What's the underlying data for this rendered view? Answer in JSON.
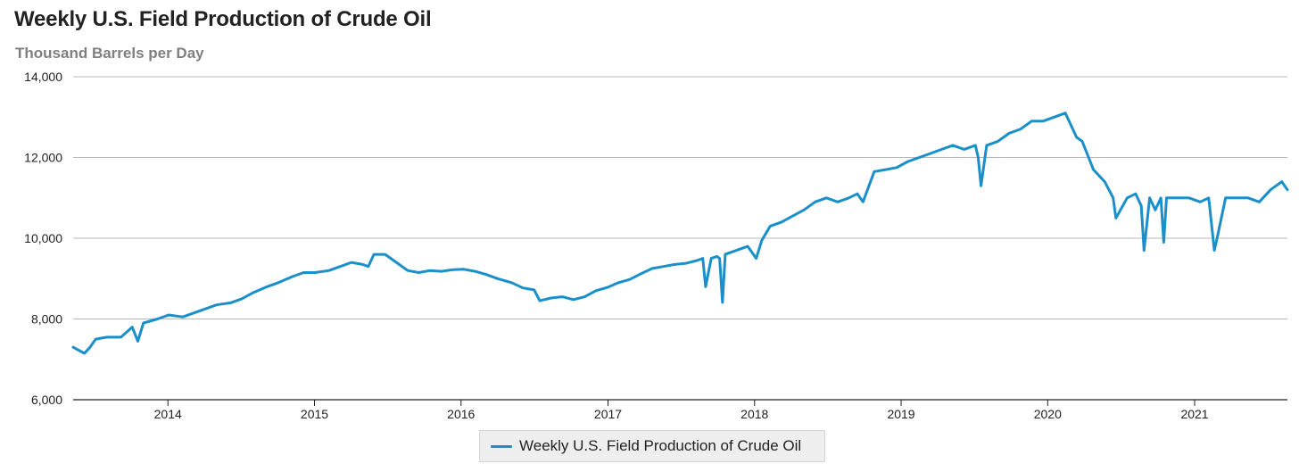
{
  "chart_data": {
    "type": "line",
    "title": "Weekly U.S. Field Production of Crude Oil",
    "subtitle": "Thousand Barrels per Day",
    "xlabel": "",
    "ylabel": "",
    "ylim": [
      6000,
      14000
    ],
    "xlim": [
      "2013-05-10",
      "2021-08-20"
    ],
    "y_ticks": [
      6000,
      8000,
      10000,
      12000,
      14000
    ],
    "y_tick_labels": [
      "6,000",
      "8,000",
      "10,000",
      "12,000",
      "14,000"
    ],
    "x_ticks": [
      "2014-01-01",
      "2015-01-01",
      "2016-01-01",
      "2017-01-01",
      "2018-01-01",
      "2019-01-01",
      "2020-01-01",
      "2021-01-01"
    ],
    "x_tick_labels": [
      "2014",
      "2015",
      "2016",
      "2017",
      "2018",
      "2019",
      "2020",
      "2021"
    ],
    "grid": true,
    "legend": "bottom-center",
    "series": [
      {
        "name": "Weekly U.S. Field Production of Crude Oil",
        "color": "#1a8fc9",
        "x": [
          "2013-05-10",
          "2013-06-07",
          "2013-06-21",
          "2013-07-05",
          "2013-08-02",
          "2013-09-06",
          "2013-10-04",
          "2013-10-18",
          "2013-11-01",
          "2013-12-06",
          "2014-01-03",
          "2014-02-07",
          "2014-03-07",
          "2014-04-04",
          "2014-05-02",
          "2014-06-06",
          "2014-07-04",
          "2014-08-01",
          "2014-09-05",
          "2014-10-03",
          "2014-11-07",
          "2014-12-05",
          "2015-01-02",
          "2015-02-06",
          "2015-03-06",
          "2015-04-03",
          "2015-05-01",
          "2015-05-15",
          "2015-05-29",
          "2015-06-26",
          "2015-07-24",
          "2015-08-21",
          "2015-09-18",
          "2015-10-16",
          "2015-11-13",
          "2015-12-11",
          "2016-01-08",
          "2016-02-05",
          "2016-03-04",
          "2016-04-01",
          "2016-05-06",
          "2016-06-03",
          "2016-07-01",
          "2016-07-15",
          "2016-08-12",
          "2016-09-09",
          "2016-10-07",
          "2016-11-04",
          "2016-12-02",
          "2016-12-30",
          "2017-01-27",
          "2017-02-24",
          "2017-03-24",
          "2017-04-21",
          "2017-05-19",
          "2017-06-16",
          "2017-07-14",
          "2017-08-11",
          "2017-08-25",
          "2017-09-01",
          "2017-09-15",
          "2017-09-29",
          "2017-10-06",
          "2017-10-13",
          "2017-10-20",
          "2017-11-17",
          "2017-12-15",
          "2018-01-05",
          "2018-01-19",
          "2018-02-09",
          "2018-03-09",
          "2018-04-06",
          "2018-05-04",
          "2018-06-01",
          "2018-06-29",
          "2018-07-27",
          "2018-08-24",
          "2018-09-14",
          "2018-09-28",
          "2018-10-26",
          "2018-11-23",
          "2018-12-21",
          "2019-01-18",
          "2019-02-15",
          "2019-03-15",
          "2019-04-12",
          "2019-05-10",
          "2019-06-07",
          "2019-07-05",
          "2019-07-12",
          "2019-07-19",
          "2019-08-02",
          "2019-08-30",
          "2019-09-27",
          "2019-10-25",
          "2019-11-22",
          "2019-12-20",
          "2020-01-17",
          "2020-02-14",
          "2020-03-13",
          "2020-03-27",
          "2020-04-24",
          "2020-05-22",
          "2020-06-12",
          "2020-06-19",
          "2020-07-17",
          "2020-08-07",
          "2020-08-21",
          "2020-08-28",
          "2020-09-11",
          "2020-09-25",
          "2020-10-09",
          "2020-10-16",
          "2020-10-23",
          "2020-11-06",
          "2020-11-20",
          "2020-12-18",
          "2021-01-15",
          "2021-02-05",
          "2021-02-19",
          "2021-02-26",
          "2021-03-19",
          "2021-04-16",
          "2021-05-14",
          "2021-06-11",
          "2021-07-09",
          "2021-08-06",
          "2021-08-20"
        ],
        "values": [
          7300,
          7150,
          7300,
          7500,
          7550,
          7550,
          7800,
          7450,
          7900,
          8000,
          8100,
          8050,
          8150,
          8250,
          8350,
          8400,
          8500,
          8650,
          8800,
          8900,
          9050,
          9150,
          9150,
          9200,
          9300,
          9400,
          9350,
          9300,
          9600,
          9600,
          9400,
          9200,
          9150,
          9200,
          9180,
          9220,
          9230,
          9180,
          9100,
          9000,
          8900,
          8770,
          8720,
          8450,
          8520,
          8550,
          8480,
          8550,
          8700,
          8780,
          8900,
          8980,
          9120,
          9250,
          9300,
          9350,
          9380,
          9450,
          9500,
          8800,
          9500,
          9550,
          9500,
          8410,
          9600,
          9700,
          9800,
          9500,
          9950,
          10300,
          10400,
          10550,
          10700,
          10900,
          11000,
          10900,
          11000,
          11100,
          10900,
          11650,
          11700,
          11750,
          11900,
          12000,
          12100,
          12200,
          12300,
          12200,
          12300,
          12000,
          11300,
          12300,
          12400,
          12600,
          12700,
          12900,
          12900,
          13000,
          13100,
          12500,
          12400,
          11700,
          11400,
          11000,
          10500,
          11000,
          11100,
          10800,
          9700,
          11000,
          10700,
          11000,
          9900,
          11000,
          11000,
          11000,
          11000,
          10900,
          11000,
          9700,
          10000,
          11000,
          11000,
          11000,
          10900,
          11200,
          11400,
          11200
        ]
      }
    ]
  }
}
